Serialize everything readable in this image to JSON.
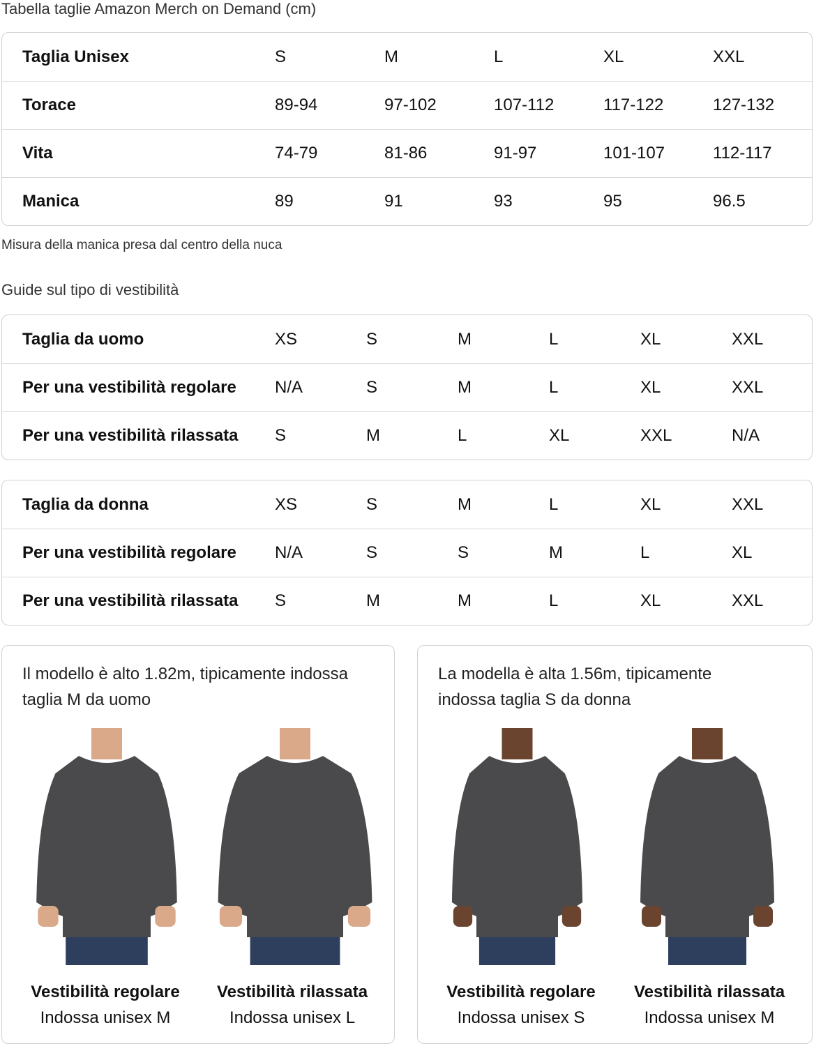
{
  "title": "Tabella taglie Amazon Merch on Demand (cm)",
  "unisex": {
    "rows": [
      {
        "label": "Taglia Unisex",
        "values": [
          "S",
          "M",
          "L",
          "XL",
          "XXL"
        ]
      },
      {
        "label": "Torace",
        "values": [
          "89-94",
          "97-102",
          "107-112",
          "117-122",
          "127-132"
        ]
      },
      {
        "label": "Vita",
        "values": [
          "74-79",
          "81-86",
          "91-97",
          "101-107",
          "112-117"
        ]
      },
      {
        "label": "Manica",
        "values": [
          "89",
          "91",
          "93",
          "95",
          "96.5"
        ]
      }
    ]
  },
  "note": "Misura della manica presa dal centro della nuca",
  "fit_title": "Guide sul tipo di vestibilità",
  "men": {
    "rows": [
      {
        "label": "Taglia da uomo",
        "values": [
          "XS",
          "S",
          "M",
          "L",
          "XL",
          "XXL"
        ]
      },
      {
        "label": "Per una vestibilità regolare",
        "values": [
          "N/A",
          "S",
          "M",
          "L",
          "XL",
          "XXL"
        ]
      },
      {
        "label": "Per una vestibilità rilassata",
        "values": [
          "S",
          "M",
          "L",
          "XL",
          "XXL",
          "N/A"
        ]
      }
    ]
  },
  "women": {
    "rows": [
      {
        "label": "Taglia da donna",
        "values": [
          "XS",
          "S",
          "M",
          "L",
          "XL",
          "XXL"
        ]
      },
      {
        "label": "Per una vestibilità regolare",
        "values": [
          "N/A",
          "S",
          "S",
          "M",
          "L",
          "XL"
        ]
      },
      {
        "label": "Per una vestibilità rilassata",
        "values": [
          "S",
          "M",
          "M",
          "L",
          "XL",
          "XXL"
        ]
      }
    ]
  },
  "cards": [
    {
      "intro": "Il modello è alto 1.82m, tipicamente indossa taglia M da uomo",
      "figures": [
        {
          "fit": "Vestibilità regolare",
          "wears": "Indossa unisex M"
        },
        {
          "fit": "Vestibilità rilassata",
          "wears": "Indossa unisex L"
        }
      ]
    },
    {
      "intro": "La modella è alta 1.56m, tipicamente indossa taglia S da donna",
      "figures": [
        {
          "fit": "Vestibilità regolare",
          "wears": "Indossa unisex S"
        },
        {
          "fit": "Vestibilità rilassata",
          "wears": "Indossa unisex M"
        }
      ]
    }
  ],
  "colors": {
    "sweater": "#4a4a4c",
    "jeans": "#2e3f5e",
    "border": "#cfd2d4"
  }
}
